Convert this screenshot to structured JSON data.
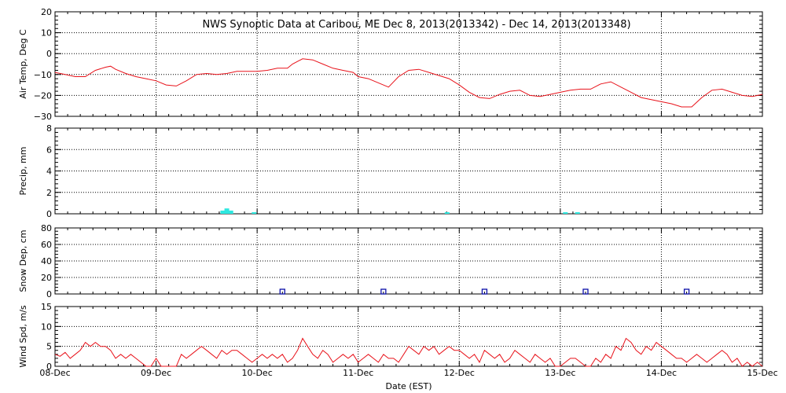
{
  "chart_data": {
    "title": "NWS Synoptic Data at Caribou, ME   Dec  8, 2013(2013342) - Dec 14, 2013(2013348)",
    "xlabel": "Date (EST)",
    "x_ticks": [
      "08-Dec",
      "09-Dec",
      "10-Dec",
      "11-Dec",
      "12-Dec",
      "13-Dec",
      "14-Dec",
      "15-Dec"
    ],
    "xlim_days": [
      8,
      15
    ],
    "colors": {
      "temp": "#e8121a",
      "precip": "#2de8e0",
      "snow": "#0b0fa8",
      "wind": "#e8121a",
      "axis": "#000000"
    },
    "panels": [
      {
        "type": "line",
        "ylabel": "Air Temp, Deg C",
        "ylim": [
          -30,
          20
        ],
        "yticks": [
          "20",
          "10",
          "0",
          "−10",
          "−20",
          "−30"
        ],
        "ytick_values": [
          20,
          10,
          0,
          -10,
          -20,
          -30
        ],
        "grid": true,
        "series": [
          {
            "x": [
              8.0,
              8.1,
              8.2,
              8.3,
              8.4,
              8.5,
              8.55,
              8.6,
              8.7,
              8.8,
              8.9,
              9.0,
              9.1,
              9.2,
              9.3,
              9.4,
              9.5,
              9.6,
              9.7,
              9.8,
              9.9,
              10.0,
              10.1,
              10.2,
              10.3,
              10.35,
              10.45,
              10.55,
              10.65,
              10.75,
              10.85,
              10.95,
              11.0,
              11.1,
              11.2,
              11.3,
              11.4,
              11.5,
              11.6,
              11.7,
              11.8,
              11.9,
              12.0,
              12.1,
              12.2,
              12.3,
              12.4,
              12.5,
              12.6,
              12.7,
              12.8,
              12.9,
              13.0,
              13.1,
              13.2,
              13.3,
              13.4,
              13.5,
              13.6,
              13.7,
              13.8,
              13.9,
              14.0,
              14.1,
              14.2,
              14.3,
              14.4,
              14.5,
              14.6,
              14.7,
              14.8,
              14.9,
              15.0
            ],
            "values": [
              -9,
              -10,
              -11,
              -11,
              -8,
              -6.5,
              -6,
              -7.5,
              -9.5,
              -11,
              -12,
              -13,
              -15,
              -15.5,
              -13,
              -10,
              -9.5,
              -10,
              -9.5,
              -8.5,
              -8.5,
              -8.5,
              -8,
              -7,
              -7,
              -5,
              -2.5,
              -3,
              -5,
              -7,
              -8,
              -9,
              -11,
              -12,
              -14,
              -16,
              -11,
              -8,
              -7.5,
              -9,
              -10.5,
              -12,
              -15,
              -18.5,
              -21,
              -21.5,
              -19.5,
              -18,
              -17.5,
              -20,
              -20.5,
              -19.5,
              -18.5,
              -17.5,
              -17,
              -17,
              -14.5,
              -13.5,
              -16,
              -18.5,
              -21,
              -22,
              -23,
              -24,
              -25.5,
              -25.5,
              -21,
              -17.5,
              -17,
              -18.5,
              -20,
              -20.5,
              -19.5
            ]
          }
        ]
      },
      {
        "type": "bar",
        "ylabel": "Precip, mm",
        "ylim": [
          0,
          8
        ],
        "yticks": [
          "8",
          "6",
          "4",
          "2",
          "0"
        ],
        "ytick_values": [
          8,
          6,
          4,
          2,
          0
        ],
        "grid": true,
        "bars": [
          {
            "x": 9.66,
            "value": 0.3
          },
          {
            "x": 9.7,
            "value": 0.5
          },
          {
            "x": 9.74,
            "value": 0.3
          },
          {
            "x": 9.97,
            "value": 0.05
          },
          {
            "x": 11.88,
            "value": 0.05
          },
          {
            "x": 13.05,
            "value": 0.05
          },
          {
            "x": 13.17,
            "value": 0.05
          }
        ]
      },
      {
        "type": "scatter",
        "ylabel": "Snow Dep, cm",
        "ylim": [
          0,
          80
        ],
        "yticks": [
          "80",
          "60",
          "40",
          "20",
          "0"
        ],
        "ytick_values": [
          80,
          60,
          40,
          20,
          0
        ],
        "grid": true,
        "points": [
          {
            "x": 10.25,
            "value": 0
          },
          {
            "x": 11.25,
            "value": 0
          },
          {
            "x": 12.25,
            "value": 0
          },
          {
            "x": 13.25,
            "value": 0
          },
          {
            "x": 14.25,
            "value": 0
          }
        ]
      },
      {
        "type": "line",
        "ylabel": "Wind Spd, m/s",
        "ylim": [
          0,
          15
        ],
        "yticks": [
          "15",
          "10",
          "5",
          "0"
        ],
        "ytick_values": [
          15,
          10,
          5,
          0
        ],
        "grid": true,
        "series": [
          {
            "x": [
              8.0,
              8.05,
              8.1,
              8.15,
              8.2,
              8.25,
              8.3,
              8.35,
              8.4,
              8.45,
              8.5,
              8.55,
              8.6,
              8.65,
              8.7,
              8.75,
              8.8,
              8.85,
              8.9,
              8.95,
              9.0,
              9.05,
              9.1,
              9.15,
              9.2,
              9.25,
              9.3,
              9.35,
              9.4,
              9.45,
              9.5,
              9.55,
              9.6,
              9.65,
              9.7,
              9.75,
              9.8,
              9.85,
              9.9,
              9.95,
              10.0,
              10.05,
              10.1,
              10.15,
              10.2,
              10.25,
              10.3,
              10.35,
              10.4,
              10.45,
              10.5,
              10.55,
              10.6,
              10.65,
              10.7,
              10.75,
              10.8,
              10.85,
              10.9,
              10.95,
              11.0,
              11.05,
              11.1,
              11.15,
              11.2,
              11.25,
              11.3,
              11.35,
              11.4,
              11.45,
              11.5,
              11.55,
              11.6,
              11.65,
              11.7,
              11.75,
              11.8,
              11.85,
              11.9,
              11.95,
              12.0,
              12.05,
              12.1,
              12.15,
              12.2,
              12.25,
              12.3,
              12.35,
              12.4,
              12.45,
              12.5,
              12.55,
              12.6,
              12.65,
              12.7,
              12.75,
              12.8,
              12.85,
              12.9,
              12.95,
              13.0,
              13.05,
              13.1,
              13.15,
              13.2,
              13.25,
              13.3,
              13.35,
              13.4,
              13.45,
              13.5,
              13.55,
              13.6,
              13.65,
              13.7,
              13.75,
              13.8,
              13.85,
              13.9,
              13.95,
              14.0,
              14.05,
              14.1,
              14.15,
              14.2,
              14.25,
              14.3,
              14.35,
              14.4,
              14.45,
              14.5,
              14.55,
              14.6,
              14.65,
              14.7,
              14.75,
              14.8,
              14.85,
              14.9,
              14.95,
              15.0
            ],
            "values": [
              3,
              2.5,
              3.5,
              2,
              3,
              4,
              6,
              5,
              6,
              5,
              5,
              4,
              2,
              3,
              2,
              3,
              2,
              1,
              0,
              0,
              2,
              0,
              0,
              0,
              0,
              3,
              2,
              3,
              4,
              5,
              4,
              3,
              2,
              4,
              3,
              4,
              4,
              3,
              2,
              1,
              2,
              3,
              2,
              3,
              2,
              3,
              1,
              2,
              4,
              7,
              5,
              3,
              2,
              4,
              3,
              1,
              2,
              3,
              2,
              3,
              1,
              2,
              3,
              2,
              1,
              3,
              2,
              2,
              1,
              3,
              5,
              4,
              3,
              5,
              4,
              5,
              3,
              4,
              5,
              4,
              4,
              3,
              2,
              3,
              1,
              4,
              3,
              2,
              3,
              1,
              2,
              4,
              3,
              2,
              1,
              3,
              2,
              1,
              2,
              0,
              0,
              1,
              2,
              2,
              1,
              0,
              0,
              2,
              1,
              3,
              2,
              5,
              4,
              7,
              6,
              4,
              3,
              5,
              4,
              6,
              5,
              4,
              3,
              2,
              2,
              1,
              2,
              3,
              2,
              1,
              2,
              3,
              4,
              3,
              1,
              2,
              0,
              1,
              0,
              1,
              0
            ]
          }
        ]
      }
    ]
  }
}
